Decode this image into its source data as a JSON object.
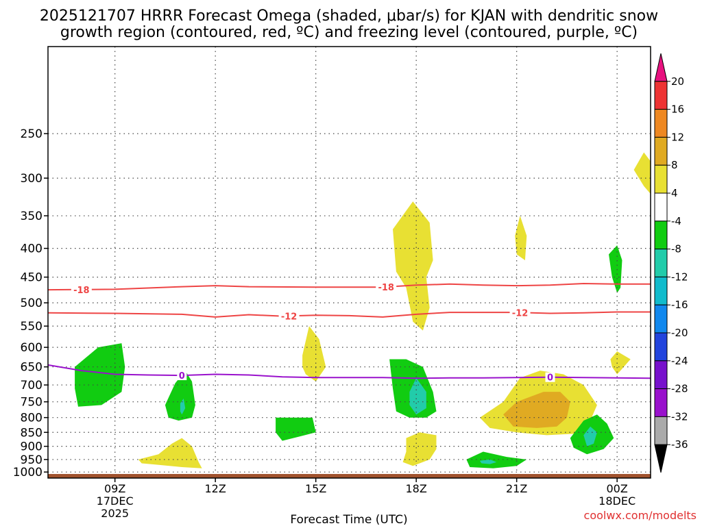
{
  "chart_data": {
    "type": "heatmap",
    "title_line1": "2025121707 HRRR Forecast Omega (shaded, μbar/s) for KJAN with dendritic snow",
    "title_line2": "growth region (contoured, red, ºC) and freezing level (contoured, purple, ºC)",
    "xlabel": "Forecast Time (UTC)",
    "ylabel": "",
    "credit": "coolwx.com/modelts",
    "x_range_hours": [
      7,
      25
    ],
    "y_range_hPa": [
      1025,
      175
    ],
    "y_ticks": [
      250,
      300,
      350,
      400,
      450,
      500,
      550,
      600,
      650,
      700,
      750,
      800,
      850,
      900,
      950,
      1000
    ],
    "x_ticks": [
      {
        "hour": 9,
        "label": "09Z",
        "sub1": "17DEC",
        "sub2": "2025"
      },
      {
        "hour": 12,
        "label": "12Z",
        "sub1": "",
        "sub2": ""
      },
      {
        "hour": 15,
        "label": "15Z",
        "sub1": "",
        "sub2": ""
      },
      {
        "hour": 18,
        "label": "18Z",
        "sub1": "",
        "sub2": ""
      },
      {
        "hour": 21,
        "label": "21Z",
        "sub1": "",
        "sub2": ""
      },
      {
        "hour": 24,
        "label": "00Z",
        "sub1": "18DEC",
        "sub2": ""
      }
    ],
    "grid": true,
    "colorbar": {
      "levels": [
        "20",
        "16",
        "12",
        "8",
        "4",
        "-4",
        "-8",
        "-12",
        "-16",
        "-20",
        "-24",
        "-28",
        "-32",
        "-36"
      ],
      "colors": [
        "#e8117f",
        "#ee3333",
        "#ee8822",
        "#e0aa22",
        "#e8e033",
        "#ffffff",
        "#11cc11",
        "#22ccaa",
        "#11bbcc",
        "#1188ee",
        "#2244dd",
        "#7711cc",
        "#9911cc",
        "#aaaaaa",
        "#000000"
      ]
    },
    "omega_regions": [
      {
        "band": "-4 to -8",
        "color": "#11cc11",
        "points": [
          [
            7.8,
            650
          ],
          [
            8.5,
            600
          ],
          [
            9.2,
            590
          ],
          [
            9.3,
            650
          ],
          [
            9.2,
            720
          ],
          [
            8.6,
            760
          ],
          [
            7.9,
            765
          ],
          [
            7.8,
            710
          ]
        ]
      },
      {
        "band": "-4 to -8",
        "color": "#11cc11",
        "points": [
          [
            10.8,
            695
          ],
          [
            11.1,
            660
          ],
          [
            11.3,
            690
          ],
          [
            11.4,
            760
          ],
          [
            11.3,
            800
          ],
          [
            10.9,
            810
          ],
          [
            10.6,
            800
          ],
          [
            10.5,
            760
          ]
        ]
      },
      {
        "band": "-8 to -12",
        "color": "#22ccaa",
        "points": [
          [
            10.95,
            755
          ],
          [
            11.05,
            740
          ],
          [
            11.1,
            770
          ],
          [
            11.0,
            790
          ],
          [
            10.95,
            780
          ]
        ]
      },
      {
        "band": "-4 to -8",
        "color": "#11cc11",
        "points": [
          [
            13.8,
            800
          ],
          [
            14.9,
            800
          ],
          [
            15.0,
            850
          ],
          [
            14.5,
            865
          ],
          [
            14.0,
            880
          ],
          [
            13.8,
            850
          ]
        ]
      },
      {
        "band": "4 to 8",
        "color": "#e8e033",
        "points": [
          [
            14.6,
            620
          ],
          [
            14.8,
            550
          ],
          [
            15.1,
            580
          ],
          [
            15.3,
            650
          ],
          [
            15.0,
            690
          ],
          [
            14.7,
            670
          ],
          [
            14.6,
            650
          ]
        ]
      },
      {
        "band": "4 to 8",
        "color": "#e8e033",
        "points": [
          [
            17.3,
            370
          ],
          [
            17.9,
            330
          ],
          [
            18.4,
            360
          ],
          [
            18.5,
            420
          ],
          [
            18.3,
            450
          ],
          [
            18.4,
            510
          ],
          [
            18.2,
            560
          ],
          [
            17.9,
            540
          ],
          [
            17.7,
            470
          ],
          [
            17.4,
            440
          ]
        ]
      },
      {
        "band": "-4 to -8",
        "color": "#11cc11",
        "points": [
          [
            17.2,
            630
          ],
          [
            17.7,
            630
          ],
          [
            18.2,
            650
          ],
          [
            18.5,
            720
          ],
          [
            18.6,
            780
          ],
          [
            18.3,
            800
          ],
          [
            17.8,
            800
          ],
          [
            17.4,
            780
          ],
          [
            17.3,
            710
          ]
        ]
      },
      {
        "band": "-8 to -12",
        "color": "#22ccaa",
        "points": [
          [
            17.8,
            720
          ],
          [
            18.0,
            680
          ],
          [
            18.3,
            720
          ],
          [
            18.3,
            770
          ],
          [
            18.0,
            790
          ],
          [
            17.8,
            760
          ]
        ]
      },
      {
        "band": "4 to 8",
        "color": "#e8e033",
        "points": [
          [
            17.7,
            870
          ],
          [
            18.1,
            850
          ],
          [
            18.6,
            860
          ],
          [
            18.6,
            910
          ],
          [
            18.4,
            950
          ],
          [
            17.9,
            975
          ],
          [
            17.6,
            960
          ],
          [
            17.7,
            920
          ]
        ]
      },
      {
        "band": "-4 to -8",
        "color": "#11cc11",
        "points": [
          [
            19.5,
            950
          ],
          [
            20.0,
            920
          ],
          [
            20.7,
            940
          ],
          [
            21.3,
            950
          ],
          [
            21.0,
            975
          ],
          [
            20.3,
            985
          ],
          [
            19.6,
            980
          ]
        ]
      },
      {
        "band": "-8 to -12",
        "color": "#22ccaa",
        "points": [
          [
            19.9,
            955
          ],
          [
            20.2,
            950
          ],
          [
            20.4,
            960
          ],
          [
            20.2,
            968
          ],
          [
            19.95,
            965
          ]
        ]
      },
      {
        "band": "4 to 8",
        "color": "#e8e033",
        "points": [
          [
            19.9,
            800
          ],
          [
            20.6,
            750
          ],
          [
            21.1,
            680
          ],
          [
            21.7,
            660
          ],
          [
            22.4,
            670
          ],
          [
            23.0,
            700
          ],
          [
            23.4,
            760
          ],
          [
            23.2,
            810
          ],
          [
            22.7,
            855
          ],
          [
            21.9,
            860
          ],
          [
            21.0,
            850
          ],
          [
            20.2,
            835
          ]
        ]
      },
      {
        "band": "8 to 12",
        "color": "#e0aa22",
        "points": [
          [
            20.6,
            790
          ],
          [
            21.0,
            750
          ],
          [
            21.8,
            720
          ],
          [
            22.3,
            720
          ],
          [
            22.6,
            750
          ],
          [
            22.5,
            800
          ],
          [
            22.2,
            830
          ],
          [
            21.6,
            835
          ],
          [
            20.9,
            830
          ]
        ]
      },
      {
        "band": "4 to 8",
        "color": "#e8e033",
        "points": [
          [
            20.95,
            380
          ],
          [
            21.1,
            350
          ],
          [
            21.3,
            380
          ],
          [
            21.25,
            420
          ],
          [
            21.0,
            410
          ]
        ]
      },
      {
        "band": "-4 to -8",
        "color": "#11cc11",
        "points": [
          [
            22.6,
            870
          ],
          [
            23.0,
            810
          ],
          [
            23.4,
            790
          ],
          [
            23.7,
            820
          ],
          [
            23.9,
            870
          ],
          [
            23.6,
            910
          ],
          [
            23.1,
            930
          ],
          [
            22.7,
            905
          ]
        ]
      },
      {
        "band": "-8 to -12",
        "color": "#22ccaa",
        "points": [
          [
            23.0,
            860
          ],
          [
            23.2,
            830
          ],
          [
            23.4,
            850
          ],
          [
            23.3,
            890
          ],
          [
            23.1,
            900
          ]
        ]
      },
      {
        "band": "-4 to -8",
        "color": "#11cc11",
        "points": [
          [
            23.75,
            410
          ],
          [
            24.0,
            395
          ],
          [
            24.15,
            420
          ],
          [
            24.1,
            470
          ],
          [
            24.0,
            480
          ],
          [
            23.85,
            450
          ]
        ]
      },
      {
        "band": "4 to 8",
        "color": "#e8e033",
        "points": [
          [
            23.8,
            630
          ],
          [
            24.0,
            610
          ],
          [
            24.4,
            630
          ],
          [
            24.1,
            660
          ],
          [
            24.0,
            670
          ],
          [
            23.85,
            650
          ]
        ]
      },
      {
        "band": "4 to 8",
        "color": "#e8e033",
        "points": [
          [
            24.5,
            290
          ],
          [
            24.8,
            270
          ],
          [
            25.0,
            280
          ],
          [
            25.0,
            320
          ],
          [
            24.8,
            310
          ]
        ]
      },
      {
        "band": "4 to 8",
        "color": "#e8e033",
        "points": [
          [
            9.7,
            950
          ],
          [
            10.3,
            930
          ],
          [
            10.7,
            890
          ],
          [
            11.0,
            870
          ],
          [
            11.3,
            900
          ],
          [
            11.5,
            960
          ],
          [
            11.6,
            985
          ],
          [
            11.0,
            980
          ],
          [
            10.2,
            970
          ],
          [
            9.8,
            965
          ]
        ]
      }
    ],
    "contours": [
      {
        "name": "-18",
        "color": "#ee4444",
        "label_at": [
          8.0,
          17.1
        ],
        "points": [
          [
            7,
            474
          ],
          [
            9,
            473
          ],
          [
            11,
            468
          ],
          [
            12,
            466
          ],
          [
            13,
            468
          ],
          [
            15,
            469
          ],
          [
            17,
            469
          ],
          [
            18,
            465
          ],
          [
            19,
            463
          ],
          [
            20,
            465
          ],
          [
            21,
            466
          ],
          [
            22,
            465
          ],
          [
            23,
            462
          ],
          [
            24,
            463
          ],
          [
            25,
            463
          ]
        ]
      },
      {
        "name": "-12",
        "color": "#ee4444",
        "label_at": [
          14.2,
          21.1
        ],
        "points": [
          [
            7,
            521
          ],
          [
            9,
            522
          ],
          [
            11,
            524
          ],
          [
            12,
            530
          ],
          [
            13,
            525
          ],
          [
            14,
            528
          ],
          [
            15,
            526
          ],
          [
            16,
            527
          ],
          [
            17,
            530
          ],
          [
            18,
            524
          ],
          [
            19,
            520
          ],
          [
            20,
            520
          ],
          [
            21,
            520
          ],
          [
            22,
            522
          ],
          [
            23,
            521
          ],
          [
            24,
            519
          ],
          [
            25,
            519
          ]
        ]
      },
      {
        "name": "0",
        "color": "#9911cc",
        "label_at": [
          11.0,
          22.0
        ],
        "points": [
          [
            7,
            645
          ],
          [
            8,
            660
          ],
          [
            9,
            670
          ],
          [
            10,
            672
          ],
          [
            11,
            673
          ],
          [
            12,
            670
          ],
          [
            13,
            672
          ],
          [
            14,
            677
          ],
          [
            15,
            679
          ],
          [
            16,
            679
          ],
          [
            17,
            679
          ],
          [
            18,
            681
          ],
          [
            19,
            680
          ],
          [
            20,
            680
          ],
          [
            21,
            679
          ],
          [
            22,
            678
          ],
          [
            23,
            679
          ],
          [
            24,
            680
          ],
          [
            25,
            681
          ]
        ]
      }
    ],
    "ground": {
      "color": "#a0522d",
      "from_hPa": 1008
    }
  }
}
